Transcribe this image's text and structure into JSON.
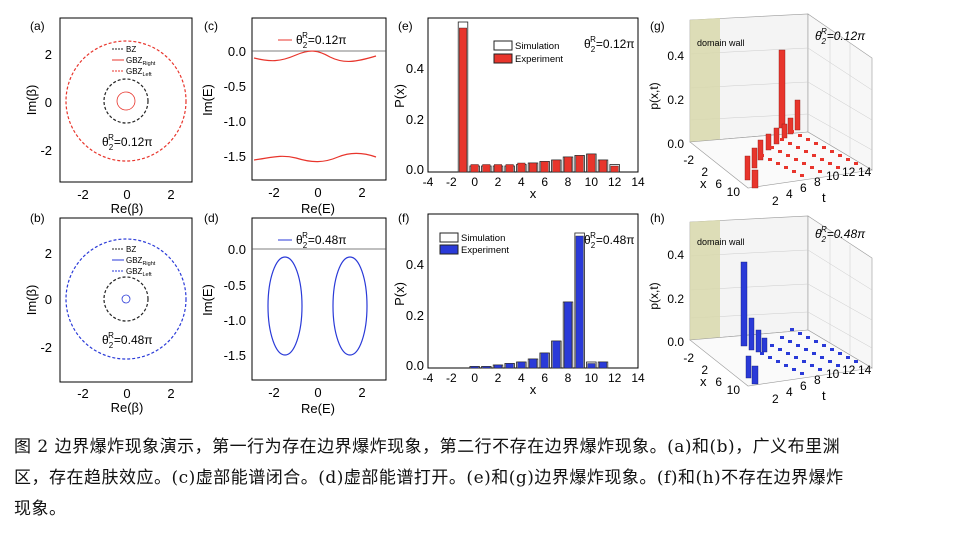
{
  "panels": {
    "a": {
      "label": "(a)",
      "x_ticks": [
        "-2",
        "0",
        "2"
      ],
      "y_ticks": [
        "2",
        "0",
        "-2"
      ],
      "xlabel": "Re(β)",
      "ylabel": "Im(β)",
      "legend": [
        "BZ",
        "GBZ_Right",
        "GBZ_Left"
      ],
      "legend_sub": "Right",
      "legend_sub2": "Left",
      "annotation": "θ",
      "ann_sup": "R",
      "ann_sub": "2",
      "ann_val": "=0.12π",
      "color": "#e8352c"
    },
    "b": {
      "label": "(b)",
      "x_ticks": [
        "-2",
        "0",
        "2"
      ],
      "y_ticks": [
        "2",
        "0",
        "-2"
      ],
      "xlabel": "Re(β)",
      "ylabel": "Im(β)",
      "legend": [
        "BZ",
        "GBZ_Right",
        "GBZ_Left"
      ],
      "annotation": "θ",
      "ann_sup": "R",
      "ann_sub": "2",
      "ann_val": "=0.48π",
      "color": "#2a3ad8"
    },
    "c": {
      "label": "(c)",
      "x_ticks": [
        "-2",
        "0",
        "2"
      ],
      "y_ticks": [
        "0.0",
        "-0.5",
        "-1.0",
        "-1.5"
      ],
      "xlabel": "Re(E)",
      "ylabel": "Im(E)",
      "legend_val": "=0.12π",
      "color": "#e8352c"
    },
    "d": {
      "label": "(d)",
      "x_ticks": [
        "-2",
        "0",
        "2"
      ],
      "y_ticks": [
        "0.0",
        "-0.5",
        "-1.0",
        "-1.5"
      ],
      "xlabel": "Re(E)",
      "ylabel": "Im(E)",
      "legend_val": "=0.48π",
      "color": "#2a3ad8"
    },
    "e": {
      "label": "(e)",
      "x_ticks": [
        "-4",
        "-2",
        "0",
        "2",
        "4",
        "6",
        "8",
        "10",
        "12",
        "14"
      ],
      "y_ticks": [
        "0.4",
        "0.2",
        "0.0"
      ],
      "xlabel": "x",
      "ylabel": "P(x)",
      "legend": [
        "Simulation",
        "Experiment"
      ],
      "ann_val": "=0.12π",
      "color": "#e8352c"
    },
    "f": {
      "label": "(f)",
      "x_ticks": [
        "-4",
        "-2",
        "0",
        "2",
        "4",
        "6",
        "8",
        "10",
        "12",
        "14"
      ],
      "y_ticks": [
        "0.4",
        "0.2",
        "0.0"
      ],
      "xlabel": "x",
      "ylabel": "P(x)",
      "legend": [
        "Simulation",
        "Experiment"
      ],
      "ann_val": "=0.48π",
      "color": "#2a3ad8"
    },
    "g": {
      "label": "(g)",
      "z_ticks": [
        "0.4",
        "0.2",
        "0.0"
      ],
      "zlabel": "p(x,t)",
      "wall": "domain wall",
      "x_ticks": [
        "-2",
        "2",
        "6",
        "10"
      ],
      "x_label": "x",
      "t_ticks": [
        "2",
        "4",
        "6",
        "8",
        "10",
        "12",
        "14"
      ],
      "t_label": "t",
      "ann_val": "=0.12π",
      "color": "#e8352c"
    },
    "h": {
      "label": "(h)",
      "z_ticks": [
        "0.4",
        "0.2",
        "0.0"
      ],
      "zlabel": "p(x,t)",
      "wall": "domain wall",
      "x_ticks": [
        "-2",
        "2",
        "6",
        "10"
      ],
      "x_label": "x",
      "t_ticks": [
        "2",
        "4",
        "6",
        "8",
        "10",
        "12",
        "14"
      ],
      "t_label": "t",
      "ann_val": "=0.48π",
      "color": "#2a3ad8"
    }
  },
  "chart_data": [
    {
      "panel": "e",
      "type": "bar",
      "x": [
        -2,
        -1,
        0,
        1,
        2,
        3,
        4,
        5,
        6,
        7,
        8,
        9,
        10,
        11,
        12
      ],
      "series": [
        {
          "name": "Simulation",
          "values": [
            0.0,
            0.5,
            0.02,
            0.02,
            0.02,
            0.02,
            0.025,
            0.03,
            0.035,
            0.04,
            0.05,
            0.055,
            0.06,
            0.04,
            0.025
          ]
        },
        {
          "name": "Experiment",
          "values": [
            0.0,
            0.48,
            0.025,
            0.025,
            0.025,
            0.025,
            0.03,
            0.03,
            0.035,
            0.04,
            0.05,
            0.055,
            0.06,
            0.04,
            0.02
          ]
        }
      ],
      "xlim": [
        -4,
        14
      ],
      "ylim": [
        0,
        0.5
      ]
    },
    {
      "panel": "f",
      "type": "bar",
      "x": [
        -2,
        -1,
        0,
        1,
        2,
        3,
        4,
        5,
        6,
        7,
        8,
        9,
        10,
        11,
        12
      ],
      "series": [
        {
          "name": "Simulation",
          "values": [
            0.0,
            0.0,
            0.005,
            0.005,
            0.01,
            0.015,
            0.02,
            0.03,
            0.05,
            0.09,
            0.22,
            0.45,
            0.02,
            0.02,
            0.0
          ]
        },
        {
          "name": "Experiment",
          "values": [
            0.0,
            0.0,
            0.005,
            0.005,
            0.01,
            0.015,
            0.02,
            0.03,
            0.05,
            0.09,
            0.22,
            0.44,
            0.015,
            0.02,
            0.0
          ]
        }
      ],
      "xlim": [
        -4,
        14
      ],
      "ylim": [
        0,
        0.5
      ]
    }
  ],
  "caption": {
    "line1": "图 2  边界爆炸现象演示，第一行为存在边界爆炸现象，第二行不存在边界爆炸现象。(a)和(b)，广义布里渊",
    "line2": "区，存在趋肤效应。(c)虚部能谱闭合。(d)虚部能谱打开。(e)和(g)边界爆炸现象。(f)和(h)不存在边界爆炸",
    "line3": "现象。"
  }
}
